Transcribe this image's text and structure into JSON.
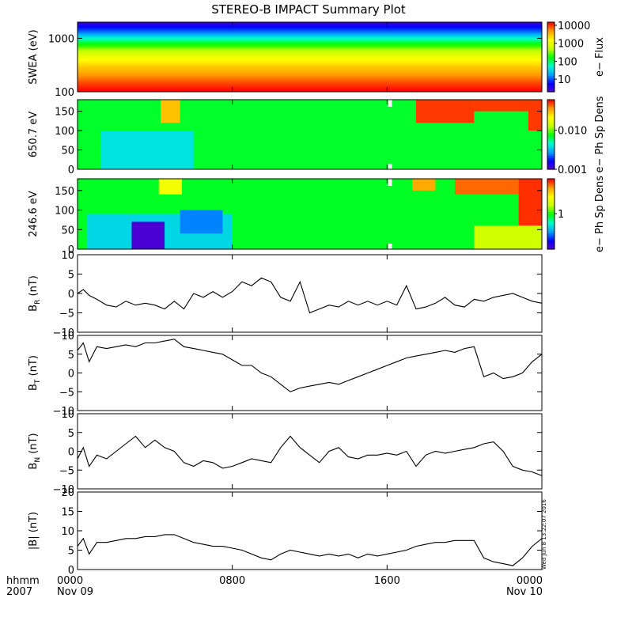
{
  "title": "STEREO-B IMPACT Summary Plot",
  "timestamp_stamp": "Wed Jun  8 13:22:07 2016",
  "time_axis": {
    "row_labels": [
      "hhmm",
      "2007"
    ],
    "ticks": [
      {
        "hours": 0,
        "time": "0000",
        "date": "Nov 09"
      },
      {
        "hours": 8,
        "time": "0800",
        "date": ""
      },
      {
        "hours": 16,
        "time": "1600",
        "date": ""
      },
      {
        "hours": 24,
        "time": "0000",
        "date": "Nov 10"
      }
    ],
    "range_hours": [
      0,
      24
    ]
  },
  "colors": {
    "colormap": [
      "#5a00c8",
      "#0000ff",
      "#00a0ff",
      "#00ffd0",
      "#00ff00",
      "#c8ff00",
      "#ffff00",
      "#ffa000",
      "#ff0000"
    ],
    "line": "#000000",
    "gap": "#ffffff"
  },
  "chart_data": [
    {
      "type": "heatmap",
      "ylabel": "SWEA (eV)",
      "scale": "log",
      "ylim": [
        100,
        2000
      ],
      "yticks": [
        {
          "v": 100,
          "t": "100"
        },
        {
          "v": 1000,
          "t": "1000"
        }
      ],
      "colorbar": {
        "label": "e− Flux",
        "scale": "log",
        "range": [
          2,
          15000
        ],
        "ticks": [
          {
            "v": 10,
            "t": "10"
          },
          {
            "v": 100,
            "t": "100"
          },
          {
            "v": 1000,
            "t": "1000"
          },
          {
            "v": 10000,
            "t": "10000"
          }
        ]
      },
      "profile": [
        {
          "y": 100,
          "v": 16000
        },
        {
          "y": 150,
          "v": 9000
        },
        {
          "y": 200,
          "v": 5500
        },
        {
          "y": 300,
          "v": 3000
        },
        {
          "y": 400,
          "v": 1600
        },
        {
          "y": 600,
          "v": 500
        },
        {
          "y": 900,
          "v": 100
        },
        {
          "y": 1300,
          "v": 15
        },
        {
          "y": 2000,
          "v": 3
        }
      ]
    },
    {
      "type": "heatmap",
      "ylabel": "650.7 eV",
      "ylim": [
        0,
        180
      ],
      "yticks": [
        {
          "v": 0,
          "t": "0"
        },
        {
          "v": 50,
          "t": "50"
        },
        {
          "v": 100,
          "t": "100"
        },
        {
          "v": 150,
          "t": "150"
        }
      ],
      "colorbar": {
        "label": "e− Ph Sp Dens",
        "scale": "log",
        "range": [
          0.001,
          0.06
        ],
        "ticks": [
          {
            "v": 0.001,
            "t": "0.001"
          },
          {
            "v": 0.01,
            "t": "0.010"
          }
        ]
      },
      "gap_hours": [
        16.05,
        16.25
      ],
      "features": [
        {
          "t0": 1.2,
          "t1": 6.0,
          "y0": 0,
          "y1": 100,
          "v": 0.004
        },
        {
          "t0": 4.3,
          "t1": 5.3,
          "y0": 120,
          "y1": 180,
          "v": 0.03
        },
        {
          "t0": 17.5,
          "t1": 20.5,
          "y0": 120,
          "y1": 180,
          "v": 0.05
        },
        {
          "t0": 20.5,
          "t1": 23.3,
          "y0": 150,
          "y1": 180,
          "v": 0.05
        },
        {
          "t0": 23.3,
          "t1": 24,
          "y0": 100,
          "y1": 180,
          "v": 0.05
        }
      ]
    },
    {
      "type": "heatmap",
      "ylabel": "246.6 eV",
      "ylim": [
        0,
        180
      ],
      "yticks": [
        {
          "v": 0,
          "t": "0"
        },
        {
          "v": 50,
          "t": "50"
        },
        {
          "v": 100,
          "t": "100"
        },
        {
          "v": 150,
          "t": "150"
        }
      ],
      "colorbar": {
        "label": "e− Ph Sp Dens",
        "scale": "log",
        "range": [
          0.08,
          12
        ],
        "ticks": [
          {
            "v": 1,
            "t": "1"
          }
        ]
      },
      "gap_hours": [
        16.05,
        16.25
      ],
      "features": [
        {
          "t0": 0.5,
          "t1": 8.0,
          "y0": 0,
          "y1": 90,
          "v": 0.4
        },
        {
          "t0": 2.8,
          "t1": 4.5,
          "y0": 0,
          "y1": 70,
          "v": 0.09
        },
        {
          "t0": 5.3,
          "t1": 7.5,
          "y0": 40,
          "y1": 100,
          "v": 0.25
        },
        {
          "t0": 4.2,
          "t1": 5.4,
          "y0": 140,
          "y1": 180,
          "v": 3
        },
        {
          "t0": 17.3,
          "t1": 18.5,
          "y0": 150,
          "y1": 180,
          "v": 6
        },
        {
          "t0": 19.5,
          "t1": 22.8,
          "y0": 140,
          "y1": 180,
          "v": 8
        },
        {
          "t0": 22.8,
          "t1": 24,
          "y0": 60,
          "y1": 180,
          "v": 10
        },
        {
          "t0": 20.5,
          "t1": 24,
          "y0": 0,
          "y1": 60,
          "v": 2
        }
      ]
    },
    {
      "type": "line",
      "ylabel_main": "B",
      "ylabel_sub": "R",
      "ylabel_unit": " (nT)",
      "ylim": [
        -10,
        10
      ],
      "yticks": [
        {
          "v": -10,
          "t": "−10"
        },
        {
          "v": -5,
          "t": "−5"
        },
        {
          "v": 0,
          "t": "0"
        },
        {
          "v": 5,
          "t": "5"
        },
        {
          "v": 10,
          "t": "10"
        }
      ],
      "x": [
        0,
        0.3,
        0.6,
        1,
        1.5,
        2,
        2.5,
        3,
        3.5,
        4,
        4.5,
        5,
        5.5,
        6,
        6.5,
        7,
        7.5,
        8,
        8.5,
        9,
        9.5,
        10,
        10.5,
        11,
        11.5,
        12,
        12.5,
        13,
        13.5,
        14,
        14.5,
        15,
        15.5,
        16,
        16.5,
        17,
        17.5,
        18,
        18.5,
        19,
        19.5,
        20,
        20.5,
        21,
        21.5,
        22,
        22.5,
        23,
        23.5,
        24
      ],
      "y": [
        0,
        1,
        -0.5,
        -1.5,
        -3,
        -3.5,
        -2,
        -3,
        -2.5,
        -3,
        -4,
        -2,
        -4,
        0,
        -1,
        0.5,
        -1,
        0.5,
        3,
        2,
        4,
        3,
        -1,
        -2,
        3,
        -5,
        -4,
        -3,
        -3.5,
        -2,
        -3,
        -2,
        -3,
        -2,
        -3,
        2,
        -4,
        -3.5,
        -2.5,
        -1,
        -3,
        -3.5,
        -1.5,
        -2,
        -1,
        -0.5,
        0,
        -1,
        -2,
        -2.5
      ]
    },
    {
      "type": "line",
      "ylabel_main": "B",
      "ylabel_sub": "T",
      "ylabel_unit": " (nT)",
      "ylim": [
        -10,
        10
      ],
      "yticks": [
        {
          "v": -10,
          "t": "−10"
        },
        {
          "v": -5,
          "t": "−5"
        },
        {
          "v": 0,
          "t": "0"
        },
        {
          "v": 5,
          "t": "5"
        },
        {
          "v": 10,
          "t": "10"
        }
      ],
      "x": [
        0,
        0.3,
        0.6,
        1,
        1.5,
        2,
        2.5,
        3,
        3.5,
        4,
        4.5,
        5,
        5.5,
        6,
        6.5,
        7,
        7.5,
        8,
        8.5,
        9,
        9.5,
        10,
        10.5,
        11,
        11.5,
        12,
        12.5,
        13,
        13.5,
        14,
        14.5,
        15,
        15.5,
        16,
        16.5,
        17,
        17.5,
        18,
        18.5,
        19,
        19.5,
        20,
        20.5,
        21,
        21.5,
        22,
        22.5,
        23,
        23.5,
        24
      ],
      "y": [
        6,
        8,
        3,
        7,
        6.5,
        7,
        7.5,
        7,
        8,
        8,
        8.5,
        9,
        7,
        6.5,
        6,
        5.5,
        5,
        3.5,
        2,
        2,
        0,
        -1,
        -3,
        -5,
        -4,
        -3.5,
        -3,
        -2.5,
        -3,
        -2,
        -1,
        0,
        1,
        2,
        3,
        4,
        4.5,
        5,
        5.5,
        6,
        5.5,
        6.5,
        7,
        -1,
        0,
        -1.5,
        -1,
        0,
        3,
        5
      ]
    },
    {
      "type": "line",
      "ylabel_main": "B",
      "ylabel_sub": "N",
      "ylabel_unit": " (nT)",
      "ylim": [
        -10,
        10
      ],
      "yticks": [
        {
          "v": -10,
          "t": "−10"
        },
        {
          "v": -5,
          "t": "−5"
        },
        {
          "v": 0,
          "t": "0"
        },
        {
          "v": 5,
          "t": "5"
        },
        {
          "v": 10,
          "t": "10"
        }
      ],
      "x": [
        0,
        0.3,
        0.6,
        1,
        1.5,
        2,
        2.5,
        3,
        3.5,
        4,
        4.5,
        5,
        5.5,
        6,
        6.5,
        7,
        7.5,
        8,
        8.5,
        9,
        9.5,
        10,
        10.5,
        11,
        11.5,
        12,
        12.5,
        13,
        13.5,
        14,
        14.5,
        15,
        15.5,
        16,
        16.5,
        17,
        17.5,
        18,
        18.5,
        19,
        19.5,
        20,
        20.5,
        21,
        21.5,
        22,
        22.5,
        23,
        23.5,
        24
      ],
      "y": [
        -2,
        1,
        -4,
        -1,
        -2,
        0,
        2,
        4,
        1,
        3,
        1,
        0,
        -3,
        -4,
        -2.5,
        -3,
        -4.5,
        -4,
        -3,
        -2,
        -2.5,
        -3,
        1,
        4,
        1,
        -1,
        -3,
        0,
        1,
        -1.5,
        -2,
        -1,
        -1,
        -0.5,
        -1,
        0,
        -4,
        -1,
        0,
        -0.5,
        0,
        0.5,
        1,
        2,
        2.5,
        0,
        -4,
        -5,
        -5.5,
        -6.5
      ]
    },
    {
      "type": "line",
      "ylabel_main": "|B|",
      "ylabel_sub": "",
      "ylabel_unit": " (nT)",
      "ylim": [
        0,
        20
      ],
      "yticks": [
        {
          "v": 0,
          "t": "0"
        },
        {
          "v": 5,
          "t": "5"
        },
        {
          "v": 10,
          "t": "10"
        },
        {
          "v": 15,
          "t": "15"
        },
        {
          "v": 20,
          "t": "20"
        }
      ],
      "x": [
        0,
        0.3,
        0.6,
        1,
        1.5,
        2,
        2.5,
        3,
        3.5,
        4,
        4.5,
        5,
        5.5,
        6,
        6.5,
        7,
        7.5,
        8,
        8.5,
        9,
        9.5,
        10,
        10.5,
        11,
        11.5,
        12,
        12.5,
        13,
        13.5,
        14,
        14.5,
        15,
        15.5,
        16,
        16.5,
        17,
        17.5,
        18,
        18.5,
        19,
        19.5,
        20,
        20.5,
        21,
        21.5,
        22,
        22.5,
        23,
        23.5,
        24
      ],
      "y": [
        6,
        8,
        4,
        7,
        7,
        7.5,
        8,
        8,
        8.5,
        8.5,
        9,
        9,
        8,
        7,
        6.5,
        6,
        6,
        5.5,
        5,
        4,
        3,
        2.5,
        4,
        5,
        4.5,
        4,
        3.5,
        4,
        3.5,
        4,
        3,
        4,
        3.5,
        4,
        4.5,
        5,
        6,
        6.5,
        7,
        7,
        7.5,
        7.5,
        7.5,
        3,
        2,
        1.5,
        1,
        3,
        6,
        8
      ]
    }
  ]
}
